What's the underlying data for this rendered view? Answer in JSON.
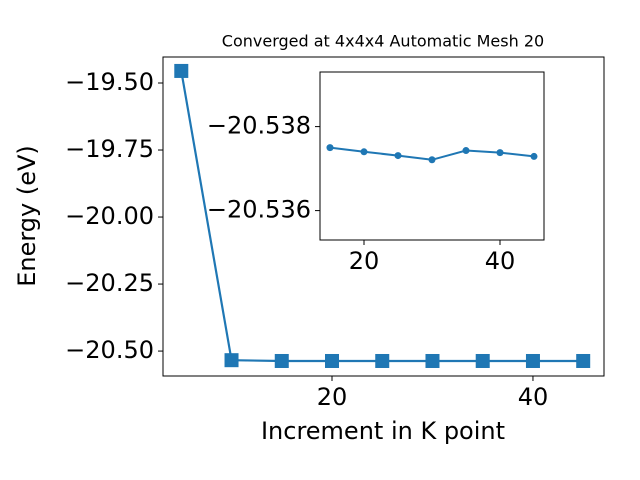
{
  "chart_data": [
    {
      "type": "line",
      "title": "Converged at 4x4x4 Automatic Mesh 20",
      "x_label": "Increment in K point",
      "y_label": "Energy (eV)",
      "x": [
        5,
        10,
        15,
        20,
        25,
        30,
        35,
        40,
        45
      ],
      "series": [
        {
          "color": "#1f77b4",
          "marker": "square",
          "values": [
            -19.455,
            -20.534,
            -20.537,
            -20.537,
            -20.537,
            -20.537,
            -20.537,
            -20.537,
            -20.537
          ]
        }
      ],
      "xlim": [
        3.18,
        47.07
      ],
      "ylim": [
        -20.593,
        -19.403
      ],
      "xticks": [
        20,
        40
      ],
      "yticks": [
        {
          "value": -20.5,
          "label": "−20.50"
        },
        {
          "value": -20.25,
          "label": "−20.25"
        },
        {
          "value": -20.0,
          "label": "−20.00"
        },
        {
          "value": -19.75,
          "label": "−19.75"
        },
        {
          "value": -19.5,
          "label": "−19.50"
        }
      ]
    },
    {
      "type": "line",
      "x": [
        15,
        20,
        25,
        30,
        35,
        40,
        45
      ],
      "series": [
        {
          "color": "#1f77b4",
          "marker": "circle",
          "values": [
            -20.5375,
            -20.5374,
            -20.53731,
            -20.53721,
            -20.53743,
            -20.53738,
            -20.53729
          ]
        }
      ],
      "xlim": [
        13.53,
        46.47
      ],
      "ylim": [
        -20.5353,
        -20.5393
      ],
      "xticks": [
        20,
        40
      ],
      "yticks": [
        {
          "value": -20.538,
          "label": "−20.538"
        },
        {
          "value": -20.536,
          "label": "−20.536"
        }
      ]
    }
  ]
}
